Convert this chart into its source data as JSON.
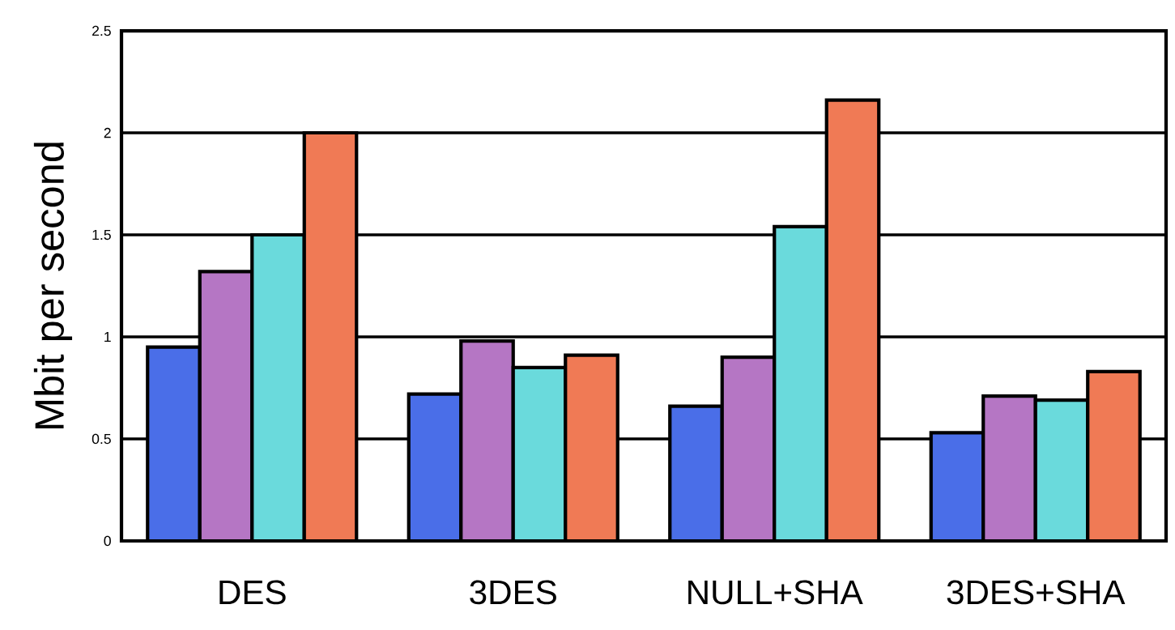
{
  "chart_data": {
    "type": "bar",
    "ylabel": "Mbit per second",
    "categories": [
      "DES",
      "3DES",
      "NULL+SHA",
      "3DES+SHA"
    ],
    "series": [
      {
        "color": "#4a6ee8",
        "values": [
          0.95,
          0.72,
          0.66,
          0.53
        ]
      },
      {
        "color": "#b576c4",
        "values": [
          1.32,
          0.98,
          0.9,
          0.71
        ]
      },
      {
        "color": "#6adadc",
        "values": [
          1.5,
          0.85,
          1.54,
          0.69
        ]
      },
      {
        "color": "#f07a55",
        "values": [
          2.0,
          0.91,
          2.16,
          0.83
        ]
      }
    ],
    "ylim": [
      0,
      2.5
    ],
    "yticks": [
      0,
      0.5,
      1,
      1.5,
      2,
      2.5
    ],
    "grid": "y"
  }
}
